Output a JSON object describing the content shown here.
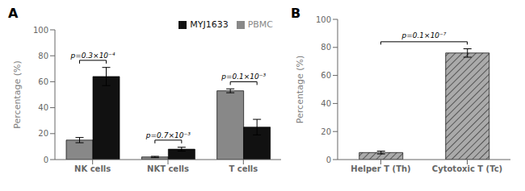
{
  "chart_data": [
    {
      "type": "bar",
      "categories": [
        "NK cells",
        "NKT cells",
        "T cells"
      ],
      "series": [
        {
          "name": "PBMC",
          "color": "#888888",
          "values": [
            15,
            2,
            53
          ],
          "errors": [
            2,
            0.5,
            1.5
          ]
        },
        {
          "name": "MYJ1633",
          "color": "#111111",
          "values": [
            64,
            8,
            25
          ],
          "errors": [
            7,
            1.5,
            6
          ]
        }
      ],
      "ylabel": "Percentage (%)",
      "ylim": [
        0,
        100
      ],
      "yticks": [
        0,
        20,
        40,
        60,
        80,
        100
      ],
      "legend": "upper right",
      "grid": false,
      "annotations": [
        {
          "text": "A"
        },
        {
          "text": "p=0.3×10⁻⁴",
          "category": "NK cells"
        },
        {
          "text": "p=0.7×10⁻³",
          "category": "NKT cells"
        },
        {
          "text": "p=0.1×10⁻³",
          "category": "T cells"
        }
      ]
    },
    {
      "type": "bar",
      "categories": [
        "Helper T (Th)",
        "Cytotoxic T (Tc)"
      ],
      "values": [
        5,
        76
      ],
      "errors": [
        1,
        3
      ],
      "color": "#aaaaaa",
      "ylabel": "Percentage (%)",
      "ylim": [
        0,
        100
      ],
      "yticks": [
        0,
        20,
        40,
        60,
        80,
        100
      ],
      "grid": false,
      "annotations": [
        {
          "text": "B"
        },
        {
          "text": "p=0.1×10⁻⁷",
          "categories": [
            "Helper T (Th)",
            "Cytotoxic T (Tc)"
          ]
        }
      ]
    }
  ]
}
